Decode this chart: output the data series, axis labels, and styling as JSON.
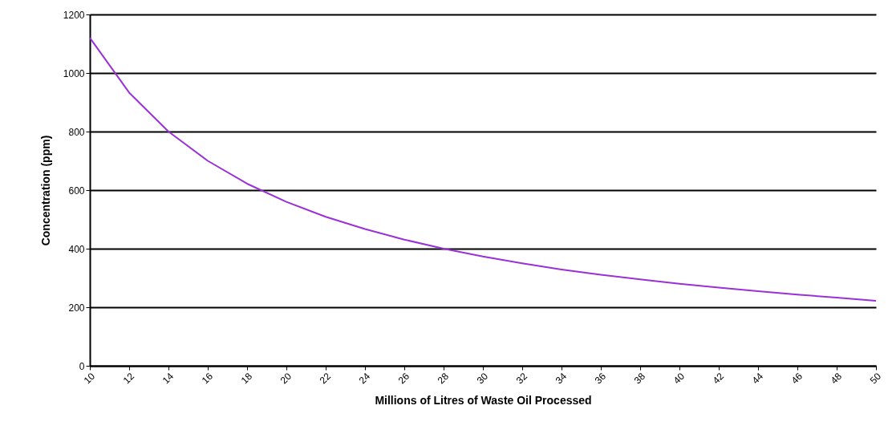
{
  "chart_data": {
    "type": "line",
    "xlabel": "Millions of Litres of Waste Oil Processed",
    "ylabel": "Concentration (ppm)",
    "x": [
      10,
      12,
      14,
      16,
      18,
      20,
      22,
      24,
      26,
      28,
      30,
      32,
      34,
      36,
      38,
      40,
      42,
      44,
      46,
      48,
      50
    ],
    "series": [
      {
        "color": "#9b30d9",
        "values": [
          1120,
          933,
          800,
          700,
          622,
          560,
          509,
          467,
          431,
          400,
          373,
          350,
          329,
          311,
          295,
          280,
          267,
          255,
          243,
          233,
          222
        ]
      }
    ],
    "xlim": [
      10,
      50
    ],
    "xticks": [
      10,
      12,
      14,
      16,
      18,
      20,
      22,
      24,
      26,
      28,
      30,
      32,
      34,
      36,
      38,
      40,
      42,
      44,
      46,
      48,
      50
    ],
    "ylim": [
      0,
      1200
    ],
    "yticks": [
      0,
      200,
      400,
      600,
      800,
      1000,
      1200
    ],
    "grid": "y",
    "marker": "none",
    "line_style": "solid"
  }
}
